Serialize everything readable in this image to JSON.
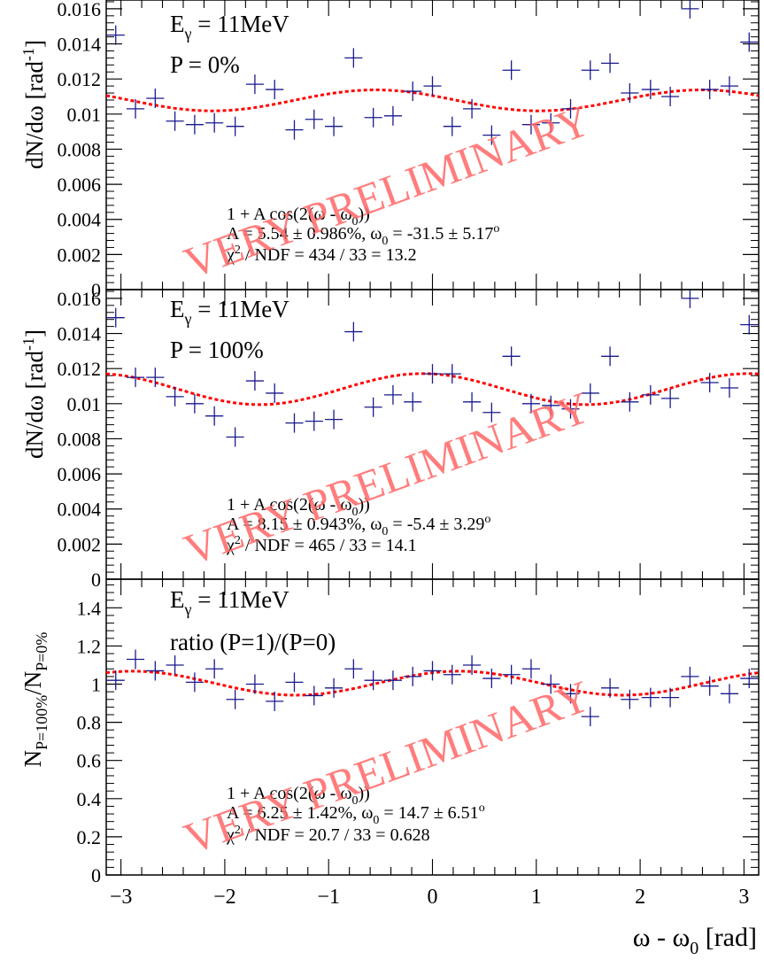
{
  "x_axis": {
    "label_main": "ω - ω",
    "label_sub": "0",
    "label_unit": " [rad]",
    "range": [
      -3.1416,
      3.1416
    ],
    "ticks": [
      "−3",
      "−2",
      "−1",
      "0",
      "1",
      "2",
      "3"
    ],
    "tick_values": [
      -3,
      -2,
      -1,
      0,
      1,
      2,
      3
    ]
  },
  "watermark": "VERY PRELIMINARY",
  "colors": {
    "data": "#1a1a8c",
    "fit": "#ff0000",
    "watermark": "#ff6666",
    "frame": "#000000"
  },
  "panels": [
    {
      "id": "p0",
      "ylabel": "dN/dω [rad",
      "ylabel_sup": "-1",
      "ylabel_close": "]",
      "ylim": [
        0,
        0.0165
      ],
      "yticks": [
        "0",
        "0.002",
        "0.004",
        "0.006",
        "0.008",
        "0.01",
        "0.012",
        "0.014",
        "0.016"
      ],
      "ytick_values": [
        0,
        0.002,
        0.004,
        0.006,
        0.008,
        0.01,
        0.012,
        0.014,
        0.016
      ],
      "energy_label": "E",
      "energy_sub": "γ",
      "energy_value": " = 11MeV",
      "condition": "P = 0%",
      "fit_formula": "1 + A cos(2(ω - ω",
      "fit_formula_sub": "0",
      "fit_formula_close": "))",
      "fit_params_a": "A = 5.54 ± 0.986%, ω",
      "fit_params_sub": "0",
      "fit_params_b": " = -31.5 ± 5.17",
      "fit_params_sup": "o",
      "chi2_sym": "χ",
      "chi2_sup": "2",
      "chi2_text": " / NDF = 434 / 33 = 13.2"
    },
    {
      "id": "p1",
      "ylabel": "dN/dω [rad",
      "ylabel_sup": "-1",
      "ylabel_close": "]",
      "ylim": [
        0,
        0.0165
      ],
      "yticks": [
        "0",
        "0.002",
        "0.004",
        "0.006",
        "0.008",
        "0.01",
        "0.012",
        "0.014",
        "0.016"
      ],
      "ytick_values": [
        0,
        0.002,
        0.004,
        0.006,
        0.008,
        0.01,
        0.012,
        0.014,
        0.016
      ],
      "energy_label": "E",
      "energy_sub": "γ",
      "energy_value": " = 11MeV",
      "condition": "P = 100%",
      "fit_formula": "1 + A cos(2(ω - ω",
      "fit_formula_sub": "0",
      "fit_formula_close": "))",
      "fit_params_a": "A = 8.15 ± 0.943%, ω",
      "fit_params_sub": "0",
      "fit_params_b": " = -5.4 ± 3.29",
      "fit_params_sup": "o",
      "chi2_sym": "χ",
      "chi2_sup": "2",
      "chi2_text": " / NDF = 465 / 33 = 14.1"
    },
    {
      "id": "p2",
      "ylabel": "N",
      "ylabel_sub1": "P=100%",
      "ylabel_mid": "/N",
      "ylabel_sub2": "P=0%",
      "ylim": [
        0,
        1.55
      ],
      "yticks": [
        "0",
        "0.2",
        "0.4",
        "0.6",
        "0.8",
        "1",
        "1.2",
        "1.4"
      ],
      "ytick_values": [
        0,
        0.2,
        0.4,
        0.6,
        0.8,
        1,
        1.2,
        1.4
      ],
      "energy_label": "E",
      "energy_sub": "γ",
      "energy_value": " = 11MeV",
      "condition": "ratio (P=1)/(P=0)",
      "fit_formula": "1 + A cos(2(ω - ω",
      "fit_formula_sub": "0",
      "fit_formula_close": "))",
      "fit_params_a": "A = 6.25 ± 1.42%, ω",
      "fit_params_sub": "0",
      "fit_params_b": " = 14.7 ± 6.51",
      "fit_params_sup": "o",
      "chi2_sym": "χ",
      "chi2_sup": "2",
      "chi2_text": " / NDF = 20.7 / 33 = 0.628"
    }
  ],
  "chart_data": [
    {
      "type": "scatter",
      "panel": "P = 0%",
      "xlim": [
        -3.1416,
        3.1416
      ],
      "ylim": [
        0,
        0.0165
      ],
      "x": [
        -3.05,
        -2.86,
        -2.67,
        -2.48,
        -2.29,
        -2.1,
        -1.9,
        -1.71,
        -1.52,
        -1.33,
        -1.14,
        -0.95,
        -0.76,
        -0.57,
        -0.38,
        -0.19,
        0.0,
        0.19,
        0.38,
        0.57,
        0.76,
        0.95,
        1.14,
        1.33,
        1.52,
        1.71,
        1.9,
        2.1,
        2.29,
        2.48,
        2.67,
        2.86,
        3.05
      ],
      "y": [
        0.0145,
        0.0103,
        0.0109,
        0.0096,
        0.0094,
        0.0095,
        0.0093,
        0.0117,
        0.0114,
        0.0091,
        0.0097,
        0.0093,
        0.0132,
        0.0098,
        0.0099,
        0.0113,
        0.0116,
        0.0093,
        0.0103,
        0.0088,
        0.0125,
        0.0094,
        0.0095,
        0.0103,
        0.0125,
        0.0129,
        0.0112,
        0.0114,
        0.011,
        0.016,
        0.0114,
        0.0116,
        0.0141
      ],
      "fit": {
        "offset": 0.01078,
        "A": 0.0554,
        "omega0_deg": -31.5
      }
    },
    {
      "type": "scatter",
      "panel": "P = 100%",
      "xlim": [
        -3.1416,
        3.1416
      ],
      "ylim": [
        0,
        0.0165
      ],
      "x": [
        -3.05,
        -2.86,
        -2.67,
        -2.48,
        -2.29,
        -2.1,
        -1.9,
        -1.71,
        -1.52,
        -1.33,
        -1.14,
        -0.95,
        -0.76,
        -0.57,
        -0.38,
        -0.19,
        0.0,
        0.19,
        0.38,
        0.57,
        0.76,
        0.95,
        1.14,
        1.33,
        1.52,
        1.71,
        1.9,
        2.1,
        2.29,
        2.48,
        2.67,
        2.86,
        3.05
      ],
      "y": [
        0.0149,
        0.0115,
        0.0115,
        0.0104,
        0.01,
        0.0093,
        0.0081,
        0.0113,
        0.0106,
        0.0089,
        0.009,
        0.0091,
        0.0141,
        0.0098,
        0.0105,
        0.0101,
        0.0117,
        0.0117,
        0.0101,
        0.0095,
        0.0127,
        0.01,
        0.0099,
        0.0097,
        0.0106,
        0.0127,
        0.0101,
        0.0105,
        0.0103,
        0.016,
        0.0112,
        0.0109,
        0.0145
      ],
      "fit": {
        "offset": 0.01083,
        "A": 0.0815,
        "omega0_deg": -5.4
      }
    },
    {
      "type": "scatter",
      "panel": "ratio (P=1)/(P=0)",
      "xlim": [
        -3.1416,
        3.1416
      ],
      "ylim": [
        0,
        1.55
      ],
      "x": [
        -3.05,
        -2.86,
        -2.67,
        -2.48,
        -2.29,
        -2.1,
        -1.9,
        -1.71,
        -1.52,
        -1.33,
        -1.14,
        -0.95,
        -0.76,
        -0.57,
        -0.38,
        -0.19,
        0.0,
        0.19,
        0.38,
        0.57,
        0.76,
        0.95,
        1.14,
        1.33,
        1.52,
        1.71,
        1.9,
        2.1,
        2.29,
        2.48,
        2.67,
        2.86,
        3.05
      ],
      "y": [
        1.02,
        1.13,
        1.07,
        1.1,
        1.01,
        1.08,
        0.92,
        1.0,
        0.91,
        1.01,
        0.94,
        0.98,
        1.08,
        1.02,
        1.02,
        1.04,
        1.07,
        1.05,
        1.1,
        1.03,
        1.05,
        1.08,
        1.0,
        0.95,
        0.83,
        0.98,
        0.92,
        0.93,
        0.93,
        1.04,
        0.99,
        0.95,
        1.03
      ],
      "fit": {
        "offset": 1.005,
        "A": 0.0625,
        "omega0_deg": 14.7
      }
    }
  ]
}
